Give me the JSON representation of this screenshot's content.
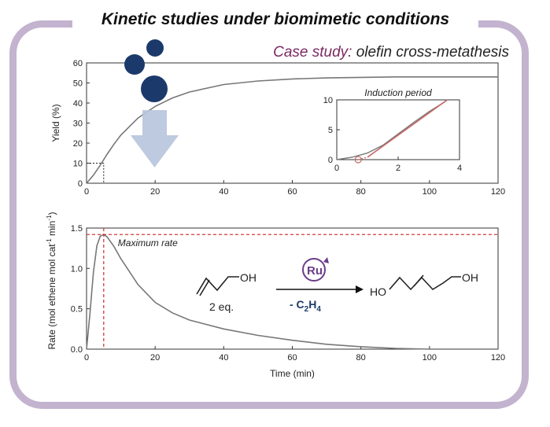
{
  "header": {
    "title": "Kinetic studies under biomimetic conditions",
    "case_label": "Case study:",
    "case_topic": " olefin cross-metathesis"
  },
  "colors": {
    "frame": "#c3b3cf",
    "accent": "#7a2a62",
    "curve": "#777777",
    "rate_line": "#d23b3b",
    "inset_fit": "#c96a6a",
    "bubble": "#1b3a6b",
    "arrow": "#b7c6dc",
    "reaction_condition": "#1b3a6b"
  },
  "chart_data": [
    {
      "type": "line",
      "name": "yield-vs-time",
      "ylabel": "Yield (%)",
      "xlim": [
        0,
        120
      ],
      "ylim": [
        0,
        60
      ],
      "xticks": [
        0,
        20,
        40,
        60,
        80,
        100,
        120
      ],
      "yticks": [
        0,
        10,
        20,
        30,
        40,
        50,
        60
      ],
      "series": [
        {
          "x": [
            0,
            2,
            4,
            6,
            8,
            10,
            15,
            20,
            25,
            30,
            40,
            50,
            60,
            70,
            80,
            90,
            100,
            110,
            120
          ],
          "y": [
            0,
            4,
            9,
            14.5,
            19.5,
            24,
            32.5,
            38.3,
            42.5,
            45.5,
            49.2,
            51,
            52,
            52.5,
            52.8,
            53,
            53,
            53,
            53
          ]
        }
      ],
      "annotation": {
        "x": 5,
        "y": 10,
        "style": "dashed guide"
      }
    },
    {
      "type": "line",
      "name": "induction-inset",
      "title": "Induction period",
      "xlim": [
        0,
        4
      ],
      "ylim": [
        0,
        10
      ],
      "xticks": [
        0,
        2,
        4
      ],
      "yticks": [
        0,
        5,
        10
      ],
      "series": [
        {
          "x": [
            0,
            0.5,
            1,
            1.5,
            2,
            2.5,
            3,
            3.5,
            3.6
          ],
          "y": [
            0,
            0.4,
            1.1,
            2.4,
            4.3,
            6.2,
            8.0,
            9.6,
            10
          ]
        }
      ],
      "fit": {
        "x": [
          1.0,
          3.6
        ],
        "y": [
          0.4,
          10
        ]
      },
      "marker": {
        "x": 0.7,
        "y": 0
      }
    },
    {
      "type": "line",
      "name": "rate-vs-time",
      "xlabel": "Time (min)",
      "ylabel": "Rate (mol ethene mol cat",
      "ylabel_sup": "-1",
      "ylabel_mid": " min",
      "ylabel_end": ")",
      "xlim": [
        0,
        120
      ],
      "ylim": [
        0,
        1.5
      ],
      "xticks": [
        0,
        20,
        40,
        60,
        80,
        100,
        120
      ],
      "yticks": [
        0.0,
        0.5,
        1.0,
        1.5
      ],
      "series": [
        {
          "x": [
            0,
            1,
            2,
            3,
            4,
            5,
            6,
            8,
            10,
            15,
            20,
            25,
            30,
            40,
            50,
            60,
            70,
            80,
            90,
            100,
            110,
            120
          ],
          "y": [
            0,
            0.45,
            0.95,
            1.28,
            1.4,
            1.42,
            1.39,
            1.27,
            1.12,
            0.8,
            0.58,
            0.45,
            0.36,
            0.25,
            0.17,
            0.11,
            0.06,
            0.03,
            0.01,
            0,
            0,
            0
          ]
        }
      ],
      "max_rate": {
        "x": 5,
        "y": 1.42,
        "label": "Maximum rate"
      }
    }
  ],
  "reaction": {
    "reactant_label": "OH",
    "reactant_amount": "2 eq.",
    "catalyst": "Ru",
    "byproduct_prefix": "- C",
    "byproduct_sub1": "2",
    "byproduct_mid": "H",
    "byproduct_sub2": "4",
    "product_left": "HO",
    "product_right": "OH"
  }
}
